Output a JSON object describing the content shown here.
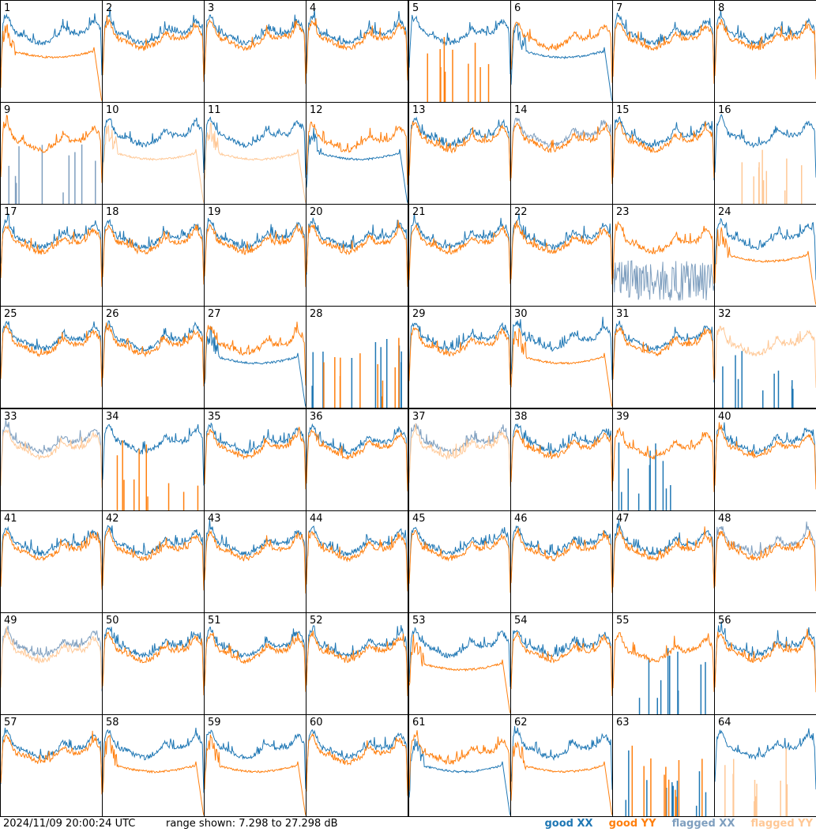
{
  "footer": {
    "timestamp": "2024/11/09 20:00:24 UTC",
    "range": "range shown: 7.298 to 27.298 dB"
  },
  "colors": {
    "good_xx": "#1f77b4",
    "good_yy": "#ff7f0e",
    "flagged_xx": "#7f9fbf",
    "flagged_yy": "#ffc896"
  },
  "legend": [
    {
      "label": "good XX",
      "color": "#1f77b4"
    },
    {
      "label": "good YY",
      "color": "#ff7f0e"
    },
    {
      "label": "flagged XX",
      "color": "#7f9fbf"
    },
    {
      "label": "flagged YY",
      "color": "#ffc896"
    }
  ],
  "chart_data": {
    "type": "line",
    "ylim": [
      7.298,
      27.298
    ],
    "units": "dB",
    "grid": "8x8",
    "panels": [
      {
        "id": "1",
        "xx": "good",
        "yy": "good",
        "xx_shape": "normal",
        "yy_shape": "dropout"
      },
      {
        "id": "2",
        "xx": "good",
        "yy": "good",
        "xx_shape": "normal",
        "yy_shape": "normal"
      },
      {
        "id": "3",
        "xx": "good",
        "yy": "good",
        "xx_shape": "normal",
        "yy_shape": "normal"
      },
      {
        "id": "4",
        "xx": "good",
        "yy": "good",
        "xx_shape": "normal",
        "yy_shape": "normal"
      },
      {
        "id": "5",
        "xx": "good",
        "yy": "good",
        "xx_shape": "normal",
        "yy_shape": "spiky"
      },
      {
        "id": "6",
        "xx": "good",
        "yy": "good",
        "xx_shape": "dropout",
        "yy_shape": "normal"
      },
      {
        "id": "7",
        "xx": "good",
        "yy": "good",
        "xx_shape": "normal",
        "yy_shape": "normal"
      },
      {
        "id": "8",
        "xx": "good",
        "yy": "good",
        "xx_shape": "normal",
        "yy_shape": "normal"
      },
      {
        "id": "9",
        "xx": "flagged",
        "yy": "good",
        "xx_shape": "spiky",
        "yy_shape": "normal"
      },
      {
        "id": "10",
        "xx": "good",
        "yy": "flagged",
        "xx_shape": "normal",
        "yy_shape": "dropout"
      },
      {
        "id": "11",
        "xx": "good",
        "yy": "flagged",
        "xx_shape": "normal",
        "yy_shape": "dropout"
      },
      {
        "id": "12",
        "xx": "good",
        "yy": "good",
        "xx_shape": "dropout",
        "yy_shape": "normal"
      },
      {
        "id": "13",
        "xx": "good",
        "yy": "good",
        "xx_shape": "normal",
        "yy_shape": "normal"
      },
      {
        "id": "14",
        "xx": "flagged",
        "yy": "good",
        "xx_shape": "normal",
        "yy_shape": "normal"
      },
      {
        "id": "15",
        "xx": "good",
        "yy": "good",
        "xx_shape": "normal",
        "yy_shape": "normal"
      },
      {
        "id": "16",
        "xx": "good",
        "yy": "flagged",
        "xx_shape": "normal",
        "yy_shape": "spiky"
      },
      {
        "id": "17",
        "xx": "good",
        "yy": "good",
        "xx_shape": "normal",
        "yy_shape": "normal"
      },
      {
        "id": "18",
        "xx": "good",
        "yy": "good",
        "xx_shape": "normal",
        "yy_shape": "normal"
      },
      {
        "id": "19",
        "xx": "good",
        "yy": "good",
        "xx_shape": "normal",
        "yy_shape": "normal"
      },
      {
        "id": "20",
        "xx": "good",
        "yy": "good",
        "xx_shape": "normal",
        "yy_shape": "normal"
      },
      {
        "id": "21",
        "xx": "good",
        "yy": "good",
        "xx_shape": "normal",
        "yy_shape": "normal"
      },
      {
        "id": "22",
        "xx": "good",
        "yy": "good",
        "xx_shape": "normal",
        "yy_shape": "normal"
      },
      {
        "id": "23",
        "xx": "flagged",
        "yy": "good",
        "xx_shape": "noisy",
        "yy_shape": "normal"
      },
      {
        "id": "24",
        "xx": "good",
        "yy": "good",
        "xx_shape": "normal",
        "yy_shape": "dropout"
      },
      {
        "id": "25",
        "xx": "good",
        "yy": "good",
        "xx_shape": "normal",
        "yy_shape": "normal"
      },
      {
        "id": "26",
        "xx": "good",
        "yy": "good",
        "xx_shape": "normal",
        "yy_shape": "normal"
      },
      {
        "id": "27",
        "xx": "good",
        "yy": "good",
        "xx_shape": "dropout",
        "yy_shape": "normal"
      },
      {
        "id": "28",
        "xx": "good",
        "yy": "good",
        "xx_shape": "spiky",
        "yy_shape": "spiky"
      },
      {
        "id": "29",
        "xx": "good",
        "yy": "good",
        "xx_shape": "normal",
        "yy_shape": "normal"
      },
      {
        "id": "30",
        "xx": "good",
        "yy": "good",
        "xx_shape": "normal",
        "yy_shape": "dropout"
      },
      {
        "id": "31",
        "xx": "good",
        "yy": "good",
        "xx_shape": "normal",
        "yy_shape": "normal"
      },
      {
        "id": "32",
        "xx": "good",
        "yy": "flagged",
        "xx_shape": "spiky",
        "yy_shape": "normal"
      },
      {
        "id": "33",
        "xx": "flagged",
        "yy": "flagged",
        "xx_shape": "normal",
        "yy_shape": "normal"
      },
      {
        "id": "34",
        "xx": "good",
        "yy": "good",
        "xx_shape": "normal",
        "yy_shape": "spiky"
      },
      {
        "id": "35",
        "xx": "good",
        "yy": "good",
        "xx_shape": "normal",
        "yy_shape": "normal"
      },
      {
        "id": "36",
        "xx": "good",
        "yy": "good",
        "xx_shape": "normal",
        "yy_shape": "normal"
      },
      {
        "id": "37",
        "xx": "flagged",
        "yy": "flagged",
        "xx_shape": "normal",
        "yy_shape": "normal"
      },
      {
        "id": "38",
        "xx": "good",
        "yy": "good",
        "xx_shape": "normal",
        "yy_shape": "normal"
      },
      {
        "id": "39",
        "xx": "good",
        "yy": "good",
        "xx_shape": "spiky",
        "yy_shape": "normal"
      },
      {
        "id": "40",
        "xx": "good",
        "yy": "good",
        "xx_shape": "normal",
        "yy_shape": "normal"
      },
      {
        "id": "41",
        "xx": "good",
        "yy": "good",
        "xx_shape": "normal",
        "yy_shape": "normal"
      },
      {
        "id": "42",
        "xx": "good",
        "yy": "good",
        "xx_shape": "normal",
        "yy_shape": "normal"
      },
      {
        "id": "43",
        "xx": "good",
        "yy": "good",
        "xx_shape": "normal",
        "yy_shape": "normal"
      },
      {
        "id": "44",
        "xx": "good",
        "yy": "good",
        "xx_shape": "normal",
        "yy_shape": "normal"
      },
      {
        "id": "45",
        "xx": "good",
        "yy": "good",
        "xx_shape": "normal",
        "yy_shape": "normal"
      },
      {
        "id": "46",
        "xx": "good",
        "yy": "good",
        "xx_shape": "normal",
        "yy_shape": "normal"
      },
      {
        "id": "47",
        "xx": "good",
        "yy": "good",
        "xx_shape": "normal",
        "yy_shape": "normal"
      },
      {
        "id": "48",
        "xx": "flagged",
        "yy": "good",
        "xx_shape": "normal",
        "yy_shape": "normal"
      },
      {
        "id": "49",
        "xx": "flagged",
        "yy": "flagged",
        "xx_shape": "normal",
        "yy_shape": "normal"
      },
      {
        "id": "50",
        "xx": "good",
        "yy": "good",
        "xx_shape": "normal",
        "yy_shape": "normal"
      },
      {
        "id": "51",
        "xx": "good",
        "yy": "good",
        "xx_shape": "normal",
        "yy_shape": "normal"
      },
      {
        "id": "52",
        "xx": "good",
        "yy": "good",
        "xx_shape": "normal",
        "yy_shape": "normal"
      },
      {
        "id": "53",
        "xx": "good",
        "yy": "good",
        "xx_shape": "normal",
        "yy_shape": "dropout"
      },
      {
        "id": "54",
        "xx": "good",
        "yy": "good",
        "xx_shape": "normal",
        "yy_shape": "normal"
      },
      {
        "id": "55",
        "xx": "good",
        "yy": "good",
        "xx_shape": "spiky",
        "yy_shape": "normal"
      },
      {
        "id": "56",
        "xx": "good",
        "yy": "good",
        "xx_shape": "normal",
        "yy_shape": "normal"
      },
      {
        "id": "57",
        "xx": "good",
        "yy": "good",
        "xx_shape": "normal",
        "yy_shape": "normal"
      },
      {
        "id": "58",
        "xx": "good",
        "yy": "good",
        "xx_shape": "normal",
        "yy_shape": "dropout"
      },
      {
        "id": "59",
        "xx": "good",
        "yy": "good",
        "xx_shape": "normal",
        "yy_shape": "dropout"
      },
      {
        "id": "60",
        "xx": "good",
        "yy": "good",
        "xx_shape": "normal",
        "yy_shape": "normal"
      },
      {
        "id": "61",
        "xx": "good",
        "yy": "good",
        "xx_shape": "dropout",
        "yy_shape": "normal"
      },
      {
        "id": "62",
        "xx": "good",
        "yy": "good",
        "xx_shape": "normal",
        "yy_shape": "dropout"
      },
      {
        "id": "63",
        "xx": "good",
        "yy": "good",
        "xx_shape": "spiky",
        "yy_shape": "spiky"
      },
      {
        "id": "64",
        "xx": "good",
        "yy": "flagged",
        "xx_shape": "normal",
        "yy_shape": "spiky"
      }
    ]
  }
}
